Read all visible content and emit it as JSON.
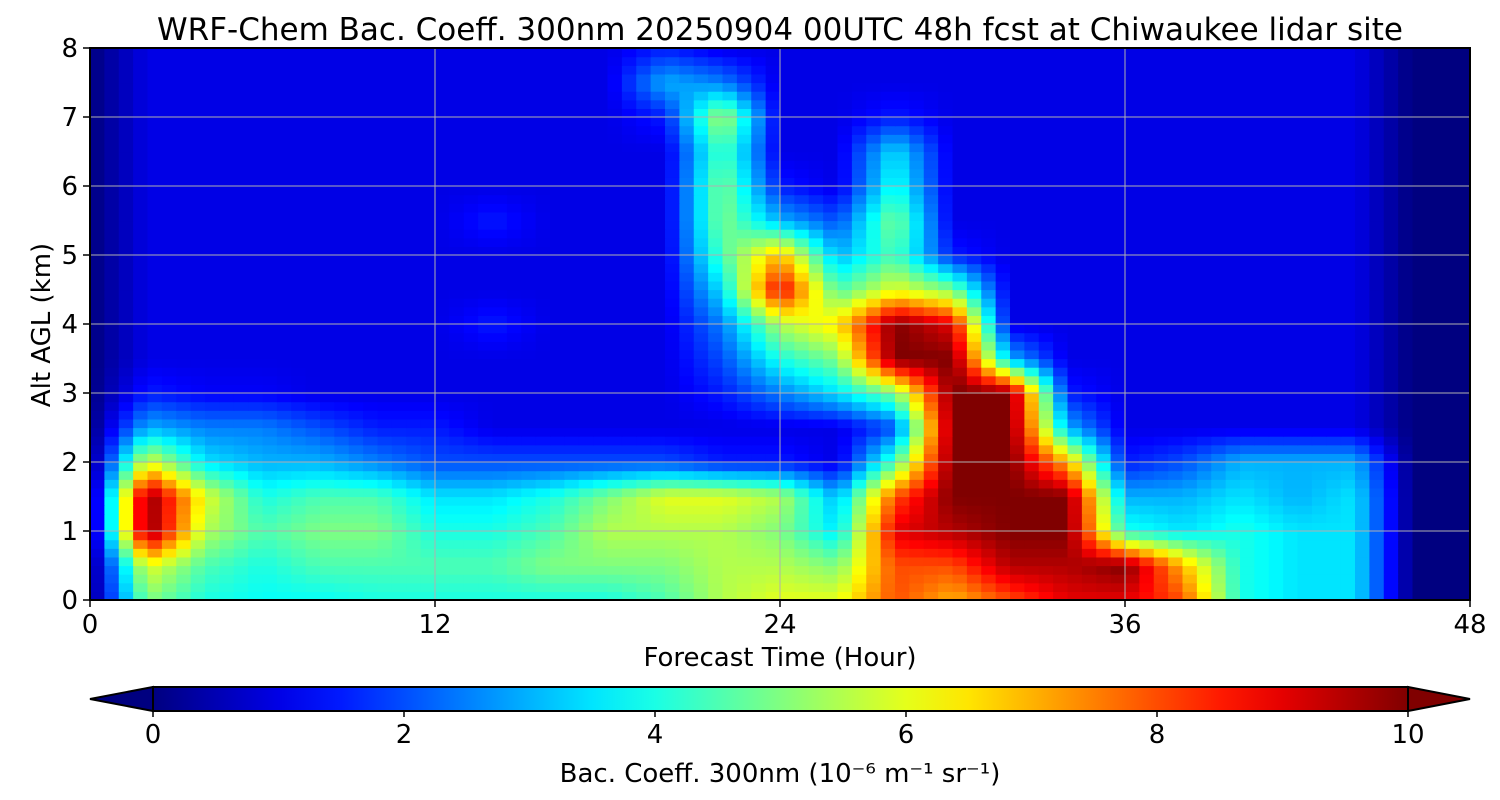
{
  "chart_data": {
    "type": "heatmap",
    "title": "WRF-Chem Bac. Coeff. 300nm  20250904 00UTC 48h fcst at Chiwaukee lidar site",
    "xlabel": "Forecast Time (Hour)",
    "ylabel": "Alt AGL (km)",
    "xlim": [
      0,
      48
    ],
    "ylim": [
      0,
      8
    ],
    "x_ticks": [
      "0",
      "12",
      "24",
      "36",
      "48"
    ],
    "y_ticks": [
      "0",
      "1",
      "2",
      "3",
      "4",
      "5",
      "6",
      "7",
      "8"
    ],
    "grid": true,
    "colormap": "jet",
    "colorbar": {
      "label": "Bac. Coeff. 300nm  (10⁻⁶ m⁻¹ sr⁻¹)",
      "min": 0,
      "max": 10,
      "ticks": [
        "0",
        "2",
        "4",
        "6",
        "8",
        "10"
      ],
      "extend": "both"
    },
    "x_hours": [
      0,
      2,
      4,
      6,
      8,
      10,
      12,
      14,
      16,
      18,
      20,
      22,
      24,
      26,
      28,
      30,
      32,
      34,
      36,
      38,
      40,
      42,
      44,
      46,
      48
    ],
    "z_km": [
      0,
      0.5,
      1,
      1.5,
      2,
      2.5,
      3,
      3.5,
      4,
      4.5,
      5,
      5.5,
      6,
      6.5,
      7,
      7.5,
      8
    ],
    "values_by_altitude": [
      [
        0,
        5,
        4,
        3.8,
        3.8,
        4,
        4,
        4,
        4,
        4,
        4.5,
        5.5,
        6,
        6,
        8,
        7,
        8,
        9,
        9,
        8,
        4,
        3.5,
        3.5,
        0,
        0
      ],
      [
        0,
        6,
        4.5,
        4,
        4.5,
        4.5,
        4.5,
        4.5,
        5,
        5,
        5,
        5.5,
        5.5,
        5,
        8,
        8,
        9.5,
        9.5,
        10,
        7,
        4,
        3.5,
        3.5,
        0,
        0
      ],
      [
        0,
        10,
        5.5,
        4.5,
        5,
        5,
        4,
        4,
        4.5,
        5.5,
        5.5,
        5.5,
        5,
        3.5,
        9,
        9.5,
        10,
        10,
        4,
        3.5,
        4,
        3.5,
        3.5,
        0,
        0
      ],
      [
        0,
        10,
        6,
        4,
        4.5,
        4.5,
        3.5,
        3.5,
        4,
        5,
        6,
        6,
        5.5,
        3,
        8,
        10,
        10,
        10,
        3,
        3,
        3.5,
        3,
        3.5,
        0,
        0
      ],
      [
        0,
        6,
        3.5,
        3,
        3,
        2.5,
        2,
        2,
        2,
        2,
        2,
        1.5,
        1.5,
        1,
        4.5,
        10,
        10,
        7,
        1.5,
        2,
        3,
        3,
        3,
        0,
        0
      ],
      [
        0,
        3,
        2.5,
        2.5,
        2,
        1.5,
        1.5,
        1,
        1,
        1,
        1,
        1,
        1,
        1,
        2,
        10,
        10,
        3,
        1,
        1,
        1,
        1,
        1,
        0,
        0
      ],
      [
        0,
        1.5,
        1.2,
        1.2,
        1,
        1,
        1,
        1,
        1,
        1,
        1,
        1.5,
        2.5,
        3.5,
        5,
        10,
        10,
        1.5,
        1,
        1,
        1,
        1,
        1,
        0,
        0
      ],
      [
        0,
        1,
        1,
        1,
        1,
        1,
        1,
        1,
        1,
        1,
        1,
        2,
        4,
        5,
        10,
        10,
        3,
        1,
        1,
        1,
        1,
        1,
        1,
        0,
        0
      ],
      [
        0,
        1,
        1,
        1,
        1,
        1,
        1,
        1.5,
        1,
        1,
        1,
        2.5,
        5.5,
        6.5,
        10,
        9,
        1,
        1,
        1,
        1,
        1,
        1,
        1,
        0,
        0
      ],
      [
        0,
        1,
        1,
        1,
        1,
        1,
        1,
        1,
        1,
        1,
        1,
        3.5,
        9,
        4.5,
        6,
        5,
        1,
        1,
        1,
        1,
        1,
        1,
        1,
        0,
        0
      ],
      [
        0,
        1,
        1,
        1,
        1,
        1,
        1,
        1,
        1,
        1,
        1,
        4.5,
        7,
        3,
        4.5,
        1.5,
        1,
        1,
        1,
        1,
        1,
        1,
        1,
        0,
        0
      ],
      [
        0,
        1,
        1,
        1,
        1,
        1,
        1,
        1.5,
        1,
        1,
        1,
        5,
        3,
        2,
        5,
        1,
        1,
        1,
        1,
        1,
        1,
        1,
        1,
        0,
        0
      ],
      [
        0,
        1,
        1,
        1,
        1,
        1,
        1,
        1,
        1,
        1,
        1,
        5,
        1.5,
        1,
        4,
        1,
        1,
        1,
        1,
        1,
        1,
        1,
        1,
        0,
        0
      ],
      [
        0,
        1,
        1,
        1,
        1,
        1,
        1,
        1,
        1,
        1,
        1,
        4.5,
        1,
        1,
        3.5,
        1,
        1,
        1,
        1,
        1,
        1,
        1,
        1,
        0,
        0
      ],
      [
        0,
        1,
        1,
        1,
        1,
        1,
        1,
        1,
        1,
        1,
        1.5,
        5.5,
        1,
        1,
        1.5,
        1,
        1,
        1,
        1,
        1,
        1,
        1,
        1,
        0,
        0
      ],
      [
        0,
        1,
        1,
        1,
        1,
        1,
        1,
        1,
        1,
        1,
        3,
        2.5,
        1,
        1,
        1,
        1,
        1,
        1,
        1,
        1,
        1,
        1,
        1,
        0,
        0
      ],
      [
        0,
        1,
        1,
        1,
        1,
        1,
        1,
        1,
        1,
        1,
        1.5,
        1,
        1,
        1,
        1,
        1,
        1,
        1,
        1,
        1,
        1,
        1,
        1,
        0,
        0
      ]
    ]
  }
}
